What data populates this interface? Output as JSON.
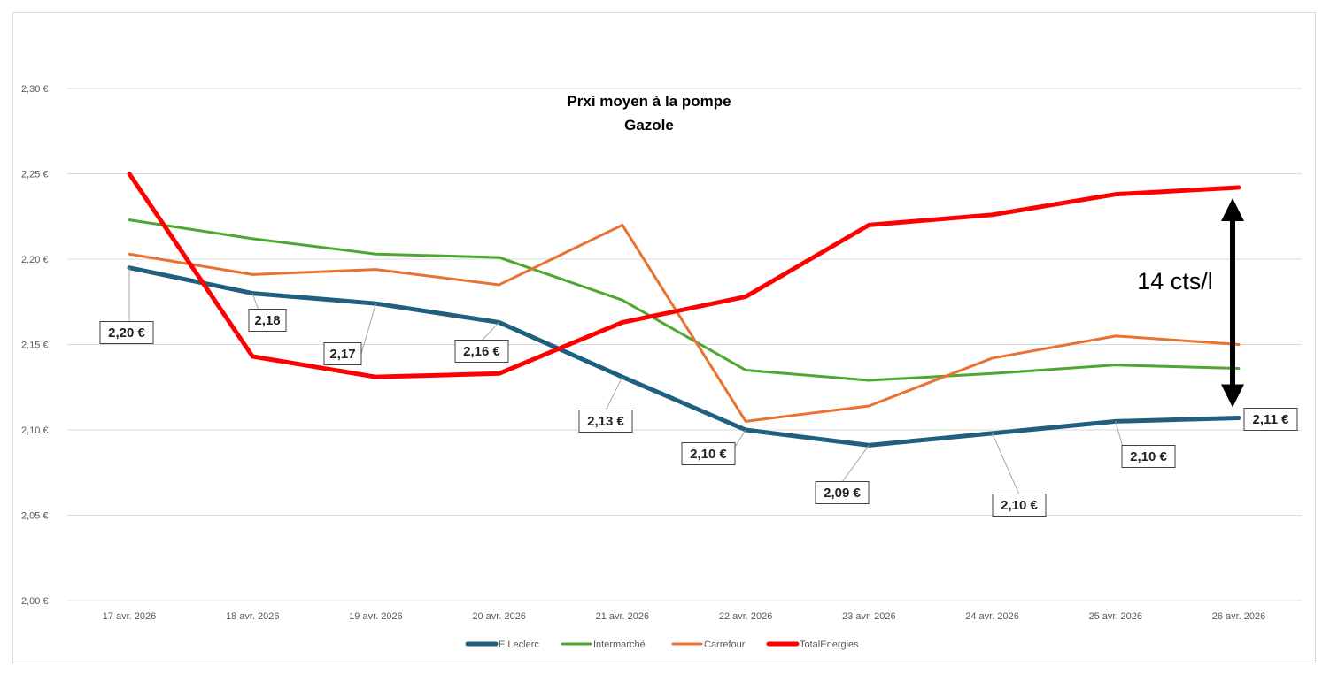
{
  "chart_data": {
    "type": "line",
    "title": [
      "Prxi moyen à la  pompe",
      "Gazole"
    ],
    "categories": [
      "17 avr. 2026",
      "18 avr. 2026",
      "19 avr. 2026",
      "20 avr. 2026",
      "21 avr. 2026",
      "22 avr. 2026",
      "23 avr. 2026",
      "24 avr. 2026",
      "25 avr. 2026",
      "26 avr. 2026"
    ],
    "ylim": [
      2.0,
      2.3
    ],
    "yticks": [
      "2,00 €",
      "2,05 €",
      "2,10 €",
      "2,15 €",
      "2,20 €",
      "2,25 €",
      "2,30 €"
    ],
    "ytick_values": [
      2.0,
      2.05,
      2.1,
      2.15,
      2.2,
      2.25,
      2.3
    ],
    "grid": true,
    "legend_position": "bottom",
    "series": [
      {
        "name": "E.Leclerc",
        "color": "#1f5f7f",
        "values": [
          2.195,
          2.18,
          2.174,
          2.163,
          2.131,
          2.1,
          2.091,
          2.098,
          2.105,
          2.107
        ]
      },
      {
        "name": "Intermarché",
        "color": "#4ea72e",
        "values": [
          2.223,
          2.212,
          2.203,
          2.201,
          2.176,
          2.135,
          2.129,
          2.133,
          2.138,
          2.136
        ]
      },
      {
        "name": "Carrefour",
        "color": "#e97132",
        "values": [
          2.203,
          2.191,
          2.194,
          2.185,
          2.22,
          2.105,
          2.114,
          2.142,
          2.155,
          2.15
        ]
      },
      {
        "name": "TotalEnergies",
        "color": "#ff0000",
        "values": [
          2.25,
          2.143,
          2.131,
          2.133,
          2.163,
          2.178,
          2.22,
          2.226,
          2.238,
          2.242
        ]
      }
    ],
    "data_labels": [
      {
        "index": 0,
        "text": "2,20 €"
      },
      {
        "index": 1,
        "text": "2,18"
      },
      {
        "index": 2,
        "text": "2,17"
      },
      {
        "index": 3,
        "text": "2,16 €"
      },
      {
        "index": 4,
        "text": "2,13 €"
      },
      {
        "index": 5,
        "text": "2,10 €"
      },
      {
        "index": 6,
        "text": "2,09 €"
      },
      {
        "index": 7,
        "text": "2,10 €"
      },
      {
        "index": 8,
        "text": "2,10 €"
      },
      {
        "index": 9,
        "text": "2,11 €"
      }
    ],
    "annotation": "14 cts/l"
  }
}
